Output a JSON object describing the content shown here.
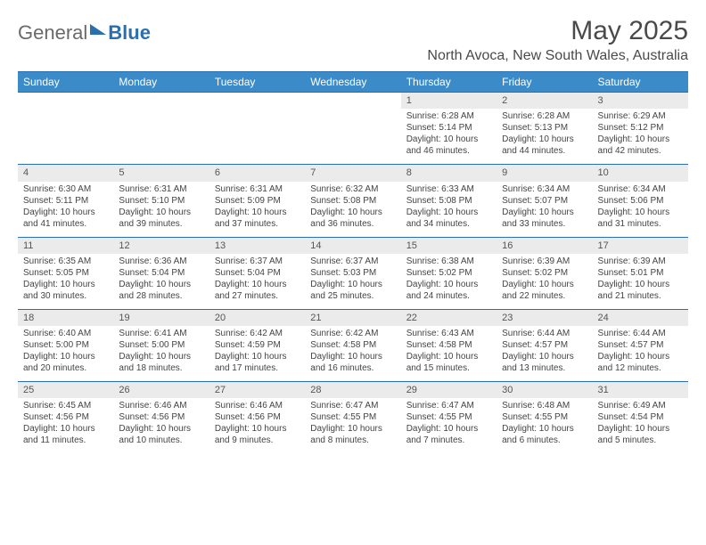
{
  "brand": {
    "general": "General",
    "blue": "Blue"
  },
  "title": "May 2025",
  "location": "North Avoca, New South Wales, Australia",
  "colors": {
    "header_bg": "#3b8bc9",
    "header_border": "#2a6fb0",
    "daynum_bg": "#ebebeb",
    "text": "#333333",
    "logo_gray": "#6a6a6a",
    "logo_blue": "#2a6fb0",
    "bg": "#ffffff"
  },
  "typography": {
    "base_fontsize": 10,
    "title_fontsize": 30,
    "location_fontsize": 16,
    "header_fontsize": 12
  },
  "daynames": [
    "Sunday",
    "Monday",
    "Tuesday",
    "Wednesday",
    "Thursday",
    "Friday",
    "Saturday"
  ],
  "weeks": [
    [
      null,
      null,
      null,
      null,
      {
        "n": "1",
        "sr": "Sunrise: 6:28 AM",
        "ss": "Sunset: 5:14 PM",
        "dl": "Daylight: 10 hours and 46 minutes."
      },
      {
        "n": "2",
        "sr": "Sunrise: 6:28 AM",
        "ss": "Sunset: 5:13 PM",
        "dl": "Daylight: 10 hours and 44 minutes."
      },
      {
        "n": "3",
        "sr": "Sunrise: 6:29 AM",
        "ss": "Sunset: 5:12 PM",
        "dl": "Daylight: 10 hours and 42 minutes."
      }
    ],
    [
      {
        "n": "4",
        "sr": "Sunrise: 6:30 AM",
        "ss": "Sunset: 5:11 PM",
        "dl": "Daylight: 10 hours and 41 minutes."
      },
      {
        "n": "5",
        "sr": "Sunrise: 6:31 AM",
        "ss": "Sunset: 5:10 PM",
        "dl": "Daylight: 10 hours and 39 minutes."
      },
      {
        "n": "6",
        "sr": "Sunrise: 6:31 AM",
        "ss": "Sunset: 5:09 PM",
        "dl": "Daylight: 10 hours and 37 minutes."
      },
      {
        "n": "7",
        "sr": "Sunrise: 6:32 AM",
        "ss": "Sunset: 5:08 PM",
        "dl": "Daylight: 10 hours and 36 minutes."
      },
      {
        "n": "8",
        "sr": "Sunrise: 6:33 AM",
        "ss": "Sunset: 5:08 PM",
        "dl": "Daylight: 10 hours and 34 minutes."
      },
      {
        "n": "9",
        "sr": "Sunrise: 6:34 AM",
        "ss": "Sunset: 5:07 PM",
        "dl": "Daylight: 10 hours and 33 minutes."
      },
      {
        "n": "10",
        "sr": "Sunrise: 6:34 AM",
        "ss": "Sunset: 5:06 PM",
        "dl": "Daylight: 10 hours and 31 minutes."
      }
    ],
    [
      {
        "n": "11",
        "sr": "Sunrise: 6:35 AM",
        "ss": "Sunset: 5:05 PM",
        "dl": "Daylight: 10 hours and 30 minutes."
      },
      {
        "n": "12",
        "sr": "Sunrise: 6:36 AM",
        "ss": "Sunset: 5:04 PM",
        "dl": "Daylight: 10 hours and 28 minutes."
      },
      {
        "n": "13",
        "sr": "Sunrise: 6:37 AM",
        "ss": "Sunset: 5:04 PM",
        "dl": "Daylight: 10 hours and 27 minutes."
      },
      {
        "n": "14",
        "sr": "Sunrise: 6:37 AM",
        "ss": "Sunset: 5:03 PM",
        "dl": "Daylight: 10 hours and 25 minutes."
      },
      {
        "n": "15",
        "sr": "Sunrise: 6:38 AM",
        "ss": "Sunset: 5:02 PM",
        "dl": "Daylight: 10 hours and 24 minutes."
      },
      {
        "n": "16",
        "sr": "Sunrise: 6:39 AM",
        "ss": "Sunset: 5:02 PM",
        "dl": "Daylight: 10 hours and 22 minutes."
      },
      {
        "n": "17",
        "sr": "Sunrise: 6:39 AM",
        "ss": "Sunset: 5:01 PM",
        "dl": "Daylight: 10 hours and 21 minutes."
      }
    ],
    [
      {
        "n": "18",
        "sr": "Sunrise: 6:40 AM",
        "ss": "Sunset: 5:00 PM",
        "dl": "Daylight: 10 hours and 20 minutes."
      },
      {
        "n": "19",
        "sr": "Sunrise: 6:41 AM",
        "ss": "Sunset: 5:00 PM",
        "dl": "Daylight: 10 hours and 18 minutes."
      },
      {
        "n": "20",
        "sr": "Sunrise: 6:42 AM",
        "ss": "Sunset: 4:59 PM",
        "dl": "Daylight: 10 hours and 17 minutes."
      },
      {
        "n": "21",
        "sr": "Sunrise: 6:42 AM",
        "ss": "Sunset: 4:58 PM",
        "dl": "Daylight: 10 hours and 16 minutes."
      },
      {
        "n": "22",
        "sr": "Sunrise: 6:43 AM",
        "ss": "Sunset: 4:58 PM",
        "dl": "Daylight: 10 hours and 15 minutes."
      },
      {
        "n": "23",
        "sr": "Sunrise: 6:44 AM",
        "ss": "Sunset: 4:57 PM",
        "dl": "Daylight: 10 hours and 13 minutes."
      },
      {
        "n": "24",
        "sr": "Sunrise: 6:44 AM",
        "ss": "Sunset: 4:57 PM",
        "dl": "Daylight: 10 hours and 12 minutes."
      }
    ],
    [
      {
        "n": "25",
        "sr": "Sunrise: 6:45 AM",
        "ss": "Sunset: 4:56 PM",
        "dl": "Daylight: 10 hours and 11 minutes."
      },
      {
        "n": "26",
        "sr": "Sunrise: 6:46 AM",
        "ss": "Sunset: 4:56 PM",
        "dl": "Daylight: 10 hours and 10 minutes."
      },
      {
        "n": "27",
        "sr": "Sunrise: 6:46 AM",
        "ss": "Sunset: 4:56 PM",
        "dl": "Daylight: 10 hours and 9 minutes."
      },
      {
        "n": "28",
        "sr": "Sunrise: 6:47 AM",
        "ss": "Sunset: 4:55 PM",
        "dl": "Daylight: 10 hours and 8 minutes."
      },
      {
        "n": "29",
        "sr": "Sunrise: 6:47 AM",
        "ss": "Sunset: 4:55 PM",
        "dl": "Daylight: 10 hours and 7 minutes."
      },
      {
        "n": "30",
        "sr": "Sunrise: 6:48 AM",
        "ss": "Sunset: 4:55 PM",
        "dl": "Daylight: 10 hours and 6 minutes."
      },
      {
        "n": "31",
        "sr": "Sunrise: 6:49 AM",
        "ss": "Sunset: 4:54 PM",
        "dl": "Daylight: 10 hours and 5 minutes."
      }
    ]
  ]
}
